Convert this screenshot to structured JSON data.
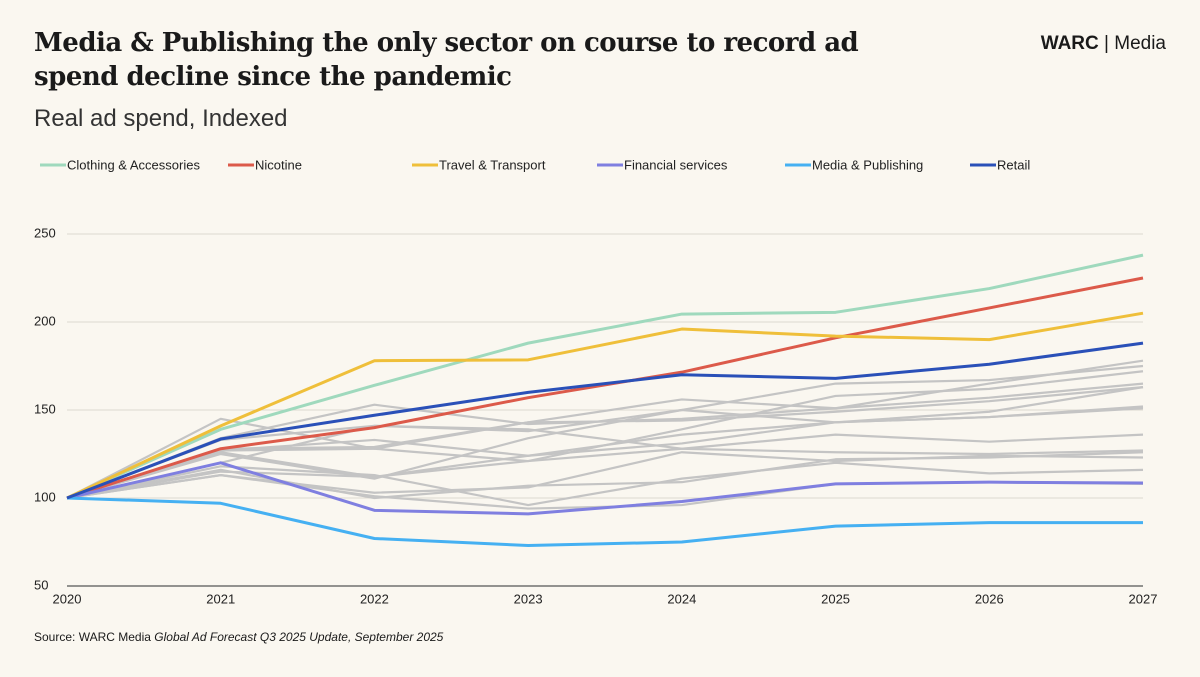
{
  "title": "Media & Publishing the only sector on course to record ad spend decline since the pandemic",
  "subtitle": "Real ad spend, Indexed",
  "logo": {
    "brand": "WARC",
    "product": "| Media"
  },
  "source": {
    "text": "Source: WARC Media",
    "publication": "Global Ad Forecast Q3 2025 Update, September 2025"
  },
  "chart_data": {
    "type": "line",
    "x": [
      2020,
      2021,
      2022,
      2023,
      2024,
      2025,
      2026,
      2027
    ],
    "xlim": [
      2020,
      2027
    ],
    "xticks": [
      2020,
      2021,
      2022,
      2023,
      2024,
      2025,
      2026,
      2027
    ],
    "ylim": [
      50,
      250
    ],
    "yticks": [
      50,
      100,
      150,
      200,
      250
    ],
    "grid": true,
    "legend": "top",
    "series": [
      {
        "color": "#c4c4c4",
        "values": [
          100,
          127,
          128,
          143,
          156,
          151,
          165,
          178
        ]
      },
      {
        "color": "#c4c4c4",
        "values": [
          100,
          133,
          141,
          138,
          150,
          165,
          167,
          175
        ]
      },
      {
        "color": "#c4c4c4",
        "values": [
          100,
          126,
          112,
          121,
          139,
          158,
          162,
          172
        ]
      },
      {
        "color": "#c4c4c4",
        "values": [
          100,
          134,
          153,
          142,
          145,
          151,
          157,
          165
        ]
      },
      {
        "color": "#c4c4c4",
        "values": [
          100,
          128,
          129,
          143,
          144,
          149,
          155,
          163
        ]
      },
      {
        "color": "#c4c4c4",
        "values": [
          100,
          127,
          133,
          124,
          131,
          143,
          149,
          163
        ]
      },
      {
        "color": "#c4c4c4",
        "values": [
          100,
          115,
          112,
          124,
          136,
          143,
          146,
          152
        ]
      },
      {
        "color": "#c4c4c4",
        "values": [
          100,
          125,
          111,
          134,
          150,
          143,
          146,
          151
        ]
      },
      {
        "color": "#c4c4c4",
        "values": [
          100,
          145,
          128,
          121,
          128,
          136,
          132,
          136
        ]
      },
      {
        "color": "#c4c4c4",
        "values": [
          100,
          120,
          141,
          139,
          128,
          126,
          125,
          127
        ]
      },
      {
        "color": "#c4c4c4",
        "values": [
          100,
          113,
          103,
          106,
          126,
          121,
          124,
          123
        ]
      },
      {
        "color": "#c4c4c4",
        "values": [
          100,
          118,
          113,
          96,
          111,
          120,
          114,
          116
        ]
      },
      {
        "color": "#c4c4c4",
        "values": [
          100,
          113,
          101,
          94,
          96,
          108,
          109,
          108
        ]
      },
      {
        "color": "#c4c4c4",
        "values": [
          100,
          116,
          100,
          107,
          109,
          122,
          123,
          126
        ]
      },
      {
        "name": "Clothing & Accessories",
        "color": "#9fd9bd",
        "values": [
          100,
          139,
          164,
          188,
          204.5,
          205.5,
          219,
          238
        ]
      },
      {
        "name": "Nicotine",
        "color": "#dc5a4a",
        "values": [
          100,
          128,
          140,
          157,
          171.5,
          191,
          208,
          225
        ]
      },
      {
        "name": "Travel & Transport",
        "color": "#efbf3a",
        "values": [
          100,
          141,
          178,
          178.5,
          196,
          192,
          190,
          205
        ]
      },
      {
        "name": "Financial services",
        "color": "#7f7fe0",
        "values": [
          100,
          120,
          93,
          91,
          98,
          108,
          109,
          108.5
        ]
      },
      {
        "name": "Media & Publishing",
        "color": "#45b0f2",
        "values": [
          100,
          97,
          77,
          73,
          75,
          84,
          86,
          86
        ]
      },
      {
        "name": "Retail",
        "color": "#2a50b8",
        "values": [
          100,
          133.5,
          147,
          160,
          170,
          168,
          176,
          188
        ]
      }
    ]
  }
}
